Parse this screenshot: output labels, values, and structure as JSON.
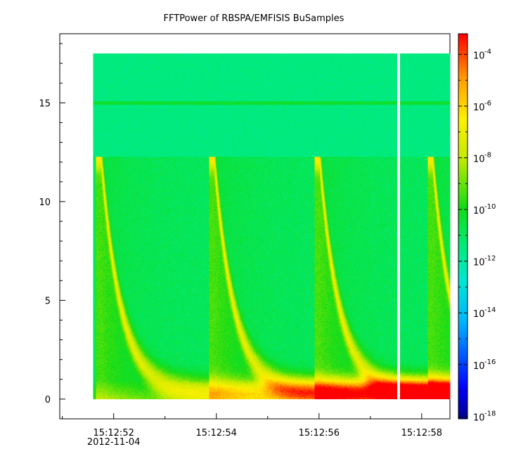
{
  "chart_data": {
    "type": "heatmap",
    "title": "FFTPower of RBSPA/EMFISIS  BuSamples",
    "xlabel": "",
    "ylabel": "",
    "x_ticks": [
      {
        "label": "15:12:52",
        "sublabel": "2012-11-04",
        "t": 52
      },
      {
        "label": "15:12:54",
        "sublabel": "",
        "t": 54
      },
      {
        "label": "15:12:56",
        "sublabel": "",
        "t": 56
      },
      {
        "label": "15:12:58",
        "sublabel": "",
        "t": 58
      }
    ],
    "xlim_seconds": [
      50.95,
      58.55
    ],
    "data_start_seconds": 51.6,
    "data_end_seconds": 58.55,
    "gap_seconds": 57.55,
    "y_ticks": [
      0,
      5,
      10,
      15
    ],
    "ylim": [
      -1,
      18.5
    ],
    "data_top": 17.5,
    "colorbar": {
      "base": "10",
      "exponents": [
        "-4",
        "-6",
        "-8",
        "-10",
        "-12",
        "-14",
        "-16",
        "-18"
      ],
      "log_scale": true,
      "range_exp": [
        -3.2,
        -18.1
      ]
    },
    "features": {
      "background_level_exp": -11.0,
      "upper_band_level_exp": -11.5,
      "cutoff_frequency": 12.3,
      "line_frequency": 15.0,
      "bursts_seconds": [
        51.75,
        53.95,
        56.0,
        58.2
      ]
    }
  }
}
